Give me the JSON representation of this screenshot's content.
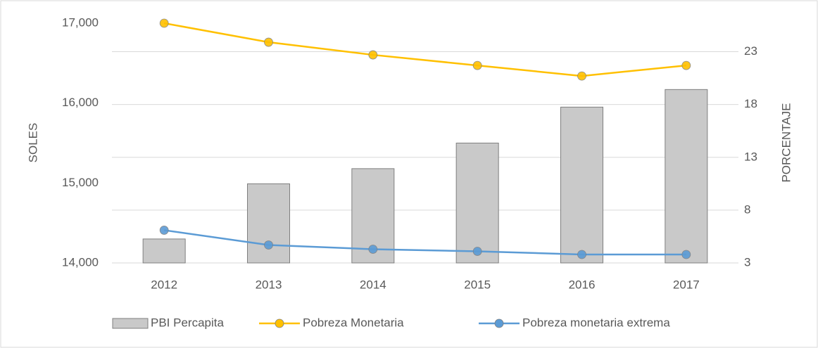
{
  "chart_data": {
    "type": "bar-line",
    "y_label": "SOLES",
    "y2_label": "PORCENTAJE",
    "categories": [
      "2012",
      "2013",
      "2014",
      "2015",
      "2016",
      "2017"
    ],
    "series": [
      {
        "name": "PBI Percapita",
        "type": "bar",
        "color": "#c9c9c9",
        "values": [
          14300,
          14990,
          15180,
          15500,
          15950,
          16170
        ]
      },
      {
        "name": "Pobreza Monetaria",
        "type": "line",
        "axis": "y2",
        "color": "#ffc000",
        "values": [
          25.7,
          23.9,
          22.7,
          21.7,
          20.7,
          21.7
        ]
      },
      {
        "name": "Pobreza monetaria extrema",
        "type": "line",
        "axis": "y2",
        "color": "#5b9bd5",
        "values": [
          6.1,
          4.7,
          4.3,
          4.1,
          3.8,
          3.8
        ]
      }
    ],
    "ylim": [
      14000,
      17000
    ],
    "yticks": [
      {
        "value": 14000,
        "label": "14,000"
      },
      {
        "value": 15000,
        "label": "15,000"
      },
      {
        "value": 16000,
        "label": "16,000"
      },
      {
        "value": 17000,
        "label": "17,000"
      }
    ],
    "y2lim": [
      3,
      25.7
    ],
    "y2ticks": [
      3,
      8,
      13,
      18,
      23
    ],
    "grid": true,
    "legend": "bottom"
  }
}
